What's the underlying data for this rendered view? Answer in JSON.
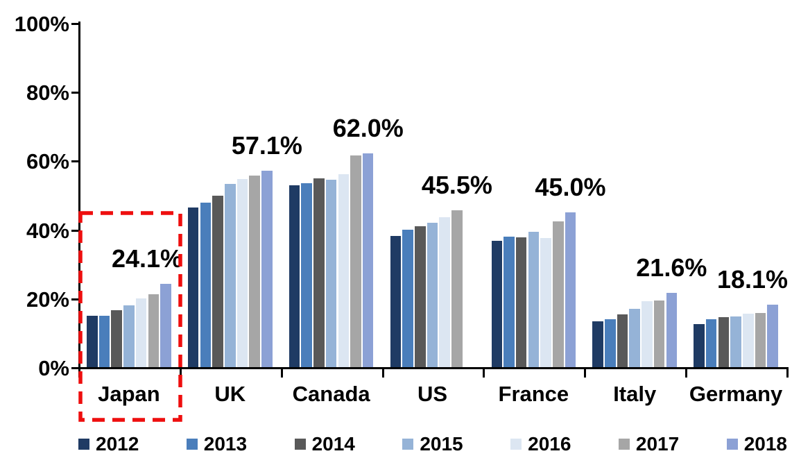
{
  "chart_data": {
    "type": "bar",
    "title": "",
    "categories": [
      "Japan",
      "UK",
      "Canada",
      "US",
      "France",
      "Italy",
      "Germany"
    ],
    "series": [
      {
        "name": "2012",
        "color": "#1F3B64",
        "values": [
          14.9,
          46.3,
          52.9,
          38.2,
          36.6,
          13.3,
          12.5
        ]
      },
      {
        "name": "2013",
        "color": "#4A7EBB",
        "values": [
          15.0,
          47.8,
          53.4,
          39.9,
          37.9,
          14.0,
          13.9
        ]
      },
      {
        "name": "2014",
        "color": "#595959",
        "values": [
          16.6,
          49.8,
          54.8,
          41.0,
          37.8,
          15.3,
          14.5
        ]
      },
      {
        "name": "2015",
        "color": "#95B3D7",
        "values": [
          18.0,
          53.2,
          54.5,
          42.0,
          39.4,
          17.0,
          14.8
        ]
      },
      {
        "name": "2016",
        "color": "#DCE6F2",
        "values": [
          20.0,
          54.6,
          56.1,
          43.5,
          37.4,
          19.2,
          15.5
        ]
      },
      {
        "name": "2017",
        "color": "#A6A6A6",
        "values": [
          21.2,
          55.7,
          61.5,
          45.5,
          42.3,
          19.3,
          15.8
        ]
      },
      {
        "name": "2018",
        "color": "#8CA1D5",
        "values": [
          24.1,
          57.1,
          62.0,
          null,
          45.0,
          21.6,
          18.1
        ]
      }
    ],
    "value_labels": [
      "24.1%",
      "57.1%",
      "62.0%",
      "45.5%",
      "45.0%",
      "21.6%",
      "18.1%"
    ],
    "y_ticks": [
      "0%",
      "20%",
      "40%",
      "60%",
      "80%",
      "100%"
    ],
    "ylim": [
      0,
      100
    ],
    "grid": false,
    "legend_position": "bottom",
    "axis_color": "#000000",
    "highlight": {
      "category": "Japan",
      "style": "dashed-box",
      "color": "#EE0E0E"
    }
  }
}
